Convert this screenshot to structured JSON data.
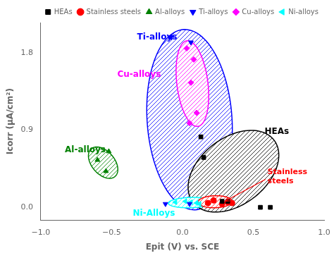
{
  "chart_data": {
    "type": "scatter",
    "xlabel": "Epit (V) vs. SCE",
    "ylabel": "Icorr (μA/cm²)",
    "xlim": [
      -1.0,
      1.0
    ],
    "ylim": [
      -0.15,
      2.15
    ],
    "xticks": [
      {
        "value": -1.0,
        "label": "−1.0"
      },
      {
        "value": -0.5,
        "label": "−0.5"
      },
      {
        "value": 0.0,
        "label": "0.0"
      },
      0.5,
      {
        "value": 1.0,
        "label": "1.0"
      }
    ],
    "yticks": [
      {
        "value": 0.0,
        "label": "0.0"
      },
      0.9,
      1.8
    ],
    "grid": false,
    "legend": "upper right",
    "series": [
      {
        "name": "HEAs",
        "color": "black",
        "marker": "square",
        "x": [
          0.13,
          0.15,
          0.55,
          0.28,
          0.32,
          0.62
        ],
        "y": [
          0.82,
          0.58,
          0.0,
          0.07,
          0.07,
          0.0
        ]
      },
      {
        "name": "Stainless steels",
        "color": "red",
        "marker": "circle",
        "x": [
          0.18,
          0.22,
          0.28,
          0.32,
          0.35
        ],
        "y": [
          0.05,
          0.08,
          0.04,
          0.06,
          0.05
        ]
      },
      {
        "name": "Al-alloys",
        "color": "green",
        "marker": "triangle_up",
        "x": [
          -0.6,
          -0.52,
          -0.54
        ],
        "y": [
          0.55,
          0.65,
          0.42
        ]
      },
      {
        "name": "Ti-alloys",
        "color": "blue",
        "marker": "triangle_down",
        "x": [
          -0.08,
          0.06,
          -0.12,
          0.05
        ],
        "y": [
          1.98,
          1.92,
          0.04,
          0.04
        ]
      },
      {
        "name": "Cu-alloys",
        "color": "magenta",
        "marker": "diamond",
        "x": [
          0.03,
          0.08,
          0.06,
          0.1,
          0.05
        ],
        "y": [
          1.85,
          1.72,
          1.45,
          1.1,
          0.98
        ]
      },
      {
        "name": "Ni-alloys",
        "color": "cyan",
        "marker": "triangle_left",
        "x": [
          -0.05,
          0.02,
          0.06,
          0.1,
          0.12
        ],
        "y": [
          0.06,
          0.07,
          0.06,
          0.05,
          0.04
        ]
      }
    ],
    "ellipses": [
      {
        "cx": 0.05,
        "cy": 1.02,
        "width": 0.6,
        "height": 2.1,
        "angle": 2,
        "color": "blue"
      },
      {
        "cx": -0.56,
        "cy": 0.52,
        "width": 0.18,
        "height": 0.38,
        "angle": 18,
        "color": "green"
      },
      {
        "cx": 0.07,
        "cy": 1.44,
        "width": 0.22,
        "height": 1.0,
        "angle": 4,
        "color": "magenta"
      },
      {
        "cx": 0.36,
        "cy": 0.42,
        "width": 0.56,
        "height": 1.0,
        "angle": -22,
        "color": "black"
      },
      {
        "cx": 0.06,
        "cy": 0.055,
        "width": 0.32,
        "height": 0.12,
        "angle": 3,
        "color": "cyan"
      },
      {
        "cx": 0.23,
        "cy": 0.065,
        "width": 0.24,
        "height": 0.14,
        "angle": 3,
        "color": "red"
      }
    ],
    "annotations": [
      {
        "text": "Ti-alloys",
        "x": -0.32,
        "y": 1.95,
        "color": "blue"
      },
      {
        "text": "Cu-alloys",
        "x": -0.46,
        "y": 1.52,
        "color": "magenta"
      },
      {
        "text": "Al-alloys",
        "x": -0.83,
        "y": 0.64,
        "color": "green"
      },
      {
        "text": "Ni-Alloys",
        "x": -0.35,
        "y": -0.1,
        "color": "cyan"
      },
      {
        "text": "HEAs",
        "x": 0.58,
        "y": 0.85,
        "color": "black"
      },
      {
        "text": "Stainless\nsteels",
        "x": 0.6,
        "y": 0.28,
        "color": "red",
        "arrow_to": [
          0.3,
          0.07
        ]
      }
    ]
  }
}
